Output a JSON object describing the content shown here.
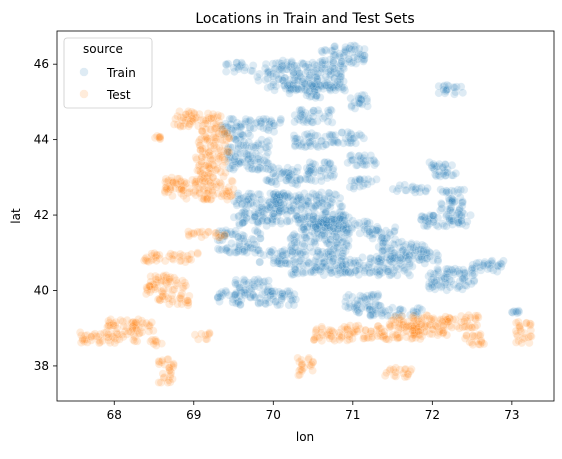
{
  "chart_data": {
    "type": "scatter",
    "title": "Locations in Train and Test Sets",
    "xlabel": "lon",
    "ylabel": "lat",
    "xlim": [
      67.28,
      73.53
    ],
    "ylim": [
      37.07,
      46.88
    ],
    "xticks": [
      68,
      69,
      70,
      71,
      72,
      73
    ],
    "yticks": [
      38,
      40,
      42,
      44,
      46
    ],
    "grid": false,
    "legend": {
      "title": "source",
      "placement": "top-left",
      "entries": [
        "Train",
        "Test"
      ]
    },
    "colors": {
      "Train": "#1f77b4",
      "Test": "#ff7f0e"
    },
    "point_alpha": 0.15,
    "series": [
      {
        "name": "Train",
        "clusters": [
          {
            "x": [
              69.4,
              69.75
            ],
            "y": [
              45.8,
              46.05
            ]
          },
          {
            "x": [
              69.8,
              70.9
            ],
            "y": [
              45.3,
              46.1
            ]
          },
          {
            "x": [
              70.6,
              71.15
            ],
            "y": [
              46.0,
              46.5
            ]
          },
          {
            "x": [
              70.2,
              70.6
            ],
            "y": [
              45.1,
              45.5
            ]
          },
          {
            "x": [
              70.95,
              71.2
            ],
            "y": [
              44.8,
              45.2
            ]
          },
          {
            "x": [
              72.05,
              72.4
            ],
            "y": [
              45.2,
              45.45
            ]
          },
          {
            "x": [
              69.35,
              69.75
            ],
            "y": [
              44.0,
              44.55
            ]
          },
          {
            "x": [
              69.75,
              70.1
            ],
            "y": [
              44.2,
              44.55
            ]
          },
          {
            "x": [
              70.25,
              70.75
            ],
            "y": [
              44.45,
              44.8
            ]
          },
          {
            "x": [
              70.25,
              70.8
            ],
            "y": [
              43.8,
              44.2
            ]
          },
          {
            "x": [
              70.8,
              71.15
            ],
            "y": [
              43.9,
              44.2
            ]
          },
          {
            "x": [
              69.4,
              69.95
            ],
            "y": [
              43.2,
              44.0
            ]
          },
          {
            "x": [
              69.9,
              70.35
            ],
            "y": [
              42.8,
              43.3
            ]
          },
          {
            "x": [
              70.4,
              70.8
            ],
            "y": [
              42.9,
              43.4
            ]
          },
          {
            "x": [
              70.9,
              71.3
            ],
            "y": [
              43.3,
              43.6
            ]
          },
          {
            "x": [
              70.95,
              71.3
            ],
            "y": [
              42.7,
              42.95
            ]
          },
          {
            "x": [
              71.5,
              71.95
            ],
            "y": [
              42.6,
              42.8
            ]
          },
          {
            "x": [
              71.95,
              72.3
            ],
            "y": [
              43.0,
              43.4
            ]
          },
          {
            "x": [
              72.1,
              72.4
            ],
            "y": [
              41.8,
              42.7
            ]
          },
          {
            "x": [
              71.85,
              72.5
            ],
            "y": [
              41.7,
              42.0
            ]
          },
          {
            "x": [
              69.5,
              70.1
            ],
            "y": [
              41.7,
              42.6
            ]
          },
          {
            "x": [
              70.0,
              70.9
            ],
            "y": [
              41.8,
              42.6
            ]
          },
          {
            "x": [
              70.3,
              70.95
            ],
            "y": [
              41.5,
              42.0
            ]
          },
          {
            "x": [
              70.5,
              71.25
            ],
            "y": [
              41.5,
              41.9
            ]
          },
          {
            "x": [
              71.2,
              71.55
            ],
            "y": [
              41.3,
              41.7
            ]
          },
          {
            "x": [
              69.3,
              69.85
            ],
            "y": [
              41.0,
              41.6
            ]
          },
          {
            "x": [
              69.8,
              70.2
            ],
            "y": [
              40.7,
              41.1
            ]
          },
          {
            "x": [
              70.2,
              70.95
            ],
            "y": [
              40.4,
              41.5
            ]
          },
          {
            "x": [
              70.9,
              71.75
            ],
            "y": [
              40.4,
              40.9
            ]
          },
          {
            "x": [
              71.3,
              71.9
            ],
            "y": [
              40.8,
              41.3
            ]
          },
          {
            "x": [
              71.85,
              72.1
            ],
            "y": [
              40.7,
              41.1
            ]
          },
          {
            "x": [
              71.95,
              72.55
            ],
            "y": [
              40.0,
              40.6
            ]
          },
          {
            "x": [
              72.45,
              72.9
            ],
            "y": [
              40.5,
              40.8
            ]
          },
          {
            "x": [
              69.5,
              69.95
            ],
            "y": [
              39.8,
              40.3
            ]
          },
          {
            "x": [
              69.3,
              69.6
            ],
            "y": [
              39.6,
              40.0
            ]
          },
          {
            "x": [
              69.8,
              70.3
            ],
            "y": [
              39.6,
              40.0
            ]
          },
          {
            "x": [
              70.9,
              71.35
            ],
            "y": [
              39.4,
              39.9
            ]
          },
          {
            "x": [
              71.2,
              71.9
            ],
            "y": [
              39.3,
              39.55
            ]
          },
          {
            "x": [
              73.0,
              73.1
            ],
            "y": [
              39.4,
              39.5
            ]
          }
        ]
      },
      {
        "name": "Test",
        "clusters": [
          {
            "x": [
              68.75,
              69.35
            ],
            "y": [
              44.3,
              44.75
            ]
          },
          {
            "x": [
              68.5,
              68.6
            ],
            "y": [
              44.0,
              44.15
            ]
          },
          {
            "x": [
              69.05,
              69.45
            ],
            "y": [
              43.6,
              44.3
            ]
          },
          {
            "x": [
              69.0,
              69.4
            ],
            "y": [
              43.0,
              43.6
            ]
          },
          {
            "x": [
              68.6,
              69.5
            ],
            "y": [
              42.4,
              43.0
            ]
          },
          {
            "x": [
              68.9,
              69.4
            ],
            "y": [
              41.4,
              41.6
            ]
          },
          {
            "x": [
              68.35,
              69.05
            ],
            "y": [
              40.75,
              41.0
            ]
          },
          {
            "x": [
              68.4,
              68.9
            ],
            "y": [
              39.9,
              40.4
            ]
          },
          {
            "x": [
              68.55,
              68.95
            ],
            "y": [
              39.6,
              39.9
            ]
          },
          {
            "x": [
              67.55,
              68.3
            ],
            "y": [
              38.6,
              38.9
            ]
          },
          {
            "x": [
              67.9,
              68.5
            ],
            "y": [
              38.85,
              39.25
            ]
          },
          {
            "x": [
              68.45,
              68.65
            ],
            "y": [
              38.5,
              38.7
            ]
          },
          {
            "x": [
              68.55,
              68.75
            ],
            "y": [
              37.55,
              38.2
            ]
          },
          {
            "x": [
              69.0,
              69.2
            ],
            "y": [
              38.7,
              38.9
            ]
          },
          {
            "x": [
              70.3,
              70.5
            ],
            "y": [
              37.75,
              38.25
            ]
          },
          {
            "x": [
              70.5,
              71.0
            ],
            "y": [
              38.65,
              39.05
            ]
          },
          {
            "x": [
              70.95,
              71.9
            ],
            "y": [
              38.7,
              39.1
            ]
          },
          {
            "x": [
              71.4,
              72.6
            ],
            "y": [
              39.0,
              39.35
            ]
          },
          {
            "x": [
              71.75,
              72.2
            ],
            "y": [
              38.8,
              39.1
            ]
          },
          {
            "x": [
              72.4,
              72.65
            ],
            "y": [
              38.55,
              38.9
            ]
          },
          {
            "x": [
              71.4,
              71.75
            ],
            "y": [
              37.7,
              37.95
            ]
          },
          {
            "x": [
              73.05,
              73.25
            ],
            "y": [
              38.6,
              39.2
            ]
          }
        ]
      }
    ]
  }
}
